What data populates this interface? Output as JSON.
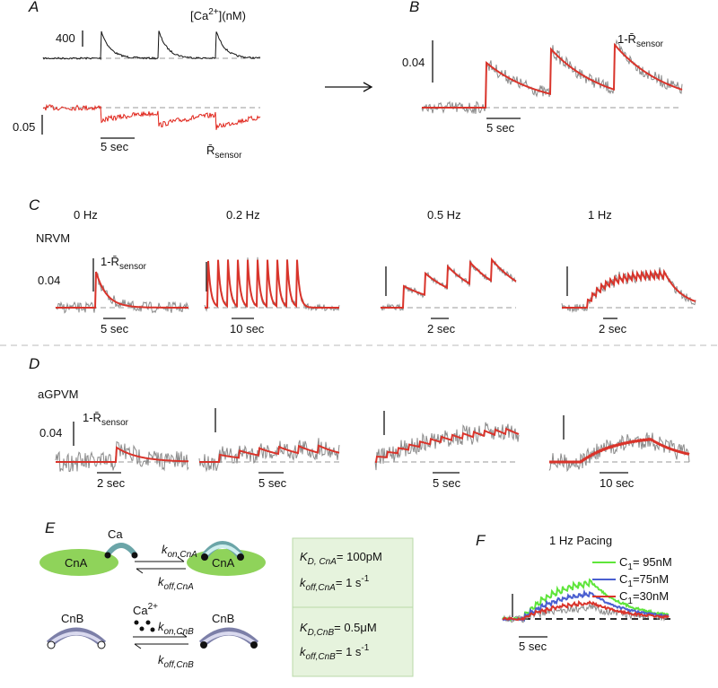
{
  "panel_a": {
    "label": "A",
    "calcium": {
      "text": "[Ca",
      "sup": "2+",
      "rest": "](nM)"
    },
    "scale_ca": "400",
    "scale_r": "0.05",
    "time": "5 sec",
    "sensor": {
      "text": "R̄",
      "sub": "sensor"
    }
  },
  "panel_b": {
    "label": "B",
    "scale": "0.04",
    "sensor": {
      "text": "1-R̄",
      "sub": "sensor"
    },
    "time": "5 sec"
  },
  "panel_c": {
    "label": "C",
    "cell": "NRVM",
    "frequencies": [
      "0 Hz",
      "0.2 Hz",
      "0.5 Hz",
      "1 Hz"
    ],
    "scale": "0.04",
    "sensor": {
      "text": "1-R̄",
      "sub": "sensor"
    },
    "times": [
      "5 sec",
      "10 sec",
      "2 sec",
      "2 sec"
    ]
  },
  "panel_d": {
    "label": "D",
    "cell": "aGPVM",
    "scale": "0.04",
    "sensor": {
      "text": "1-R̄",
      "sub": "sensor"
    },
    "times": [
      "2 sec",
      "5 sec",
      "5 sec",
      "10 sec"
    ]
  },
  "panel_e": {
    "label": "E",
    "ca": "Ca",
    "cna_left": "CnA",
    "cna_right": "CnA",
    "kon_cna": {
      "text": "k",
      "sub": "on,CnA"
    },
    "koff_cna": {
      "text": "k",
      "sub": "off,CnA"
    },
    "cnb_left": "CnB",
    "cnb_right": "CnB",
    "ca2": {
      "text": "Ca",
      "sup": "2+"
    },
    "kon_cnb": {
      "text": "k",
      "sub": "on,CnB"
    },
    "koff_cnb": {
      "text": "k",
      "sub": "off,CnB"
    },
    "constants": [
      {
        "text": "K",
        "sub": "D, CnA",
        "rest": "= 100pM"
      },
      {
        "text": "k",
        "sub": "off,CnA",
        "rest": "= 1 s",
        "sup": "-1"
      },
      {
        "text": "K",
        "sub": "D,CnB",
        "rest": "= 0.5μM"
      },
      {
        "text": "k",
        "sub": "off,CnB",
        "rest": "= 1 s",
        "sup": "-1"
      }
    ]
  },
  "panel_f": {
    "label": "F",
    "title": "1 Hz Pacing",
    "legend": [
      {
        "text": "C",
        "sub": "1",
        "rest": "= 95nM",
        "color": "#5ee53a"
      },
      {
        "text": "C",
        "sub": "1",
        "rest": "=75nM",
        "color": "#4a5fd0"
      },
      {
        "text": "C",
        "sub": "1",
        "rest": "=30nM",
        "color": "#d9342b"
      }
    ],
    "time": "5 sec"
  }
}
